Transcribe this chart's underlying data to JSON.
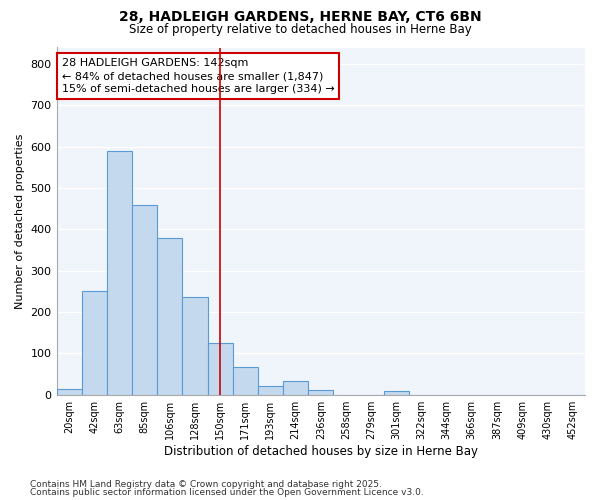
{
  "title1": "28, HADLEIGH GARDENS, HERNE BAY, CT6 6BN",
  "title2": "Size of property relative to detached houses in Herne Bay",
  "xlabel": "Distribution of detached houses by size in Herne Bay",
  "ylabel": "Number of detached properties",
  "categories": [
    "20sqm",
    "42sqm",
    "63sqm",
    "85sqm",
    "106sqm",
    "128sqm",
    "150sqm",
    "171sqm",
    "193sqm",
    "214sqm",
    "236sqm",
    "258sqm",
    "279sqm",
    "301sqm",
    "322sqm",
    "344sqm",
    "366sqm",
    "387sqm",
    "409sqm",
    "430sqm",
    "452sqm"
  ],
  "values": [
    15,
    250,
    590,
    458,
    380,
    237,
    125,
    67,
    22,
    33,
    12,
    0,
    0,
    9,
    0,
    0,
    0,
    0,
    0,
    0,
    0
  ],
  "bar_color": "#c5d9ee",
  "bar_edge_color": "#5b9bd5",
  "vline_x_index": 6,
  "vline_color": "#cc0000",
  "annotation_text_line1": "28 HADLEIGH GARDENS: 142sqm",
  "annotation_text_line2": "← 84% of detached houses are smaller (1,847)",
  "annotation_text_line3": "15% of semi-detached houses are larger (334) →",
  "annotation_box_color": "#ffffff",
  "annotation_edge_color": "#cc0000",
  "background_color": "#ffffff",
  "plot_background_color": "#f0f4fb",
  "grid_color": "#ffffff",
  "ylim": [
    0,
    840
  ],
  "yticks": [
    0,
    100,
    200,
    300,
    400,
    500,
    600,
    700,
    800
  ],
  "footer1": "Contains HM Land Registry data © Crown copyright and database right 2025.",
  "footer2": "Contains public sector information licensed under the Open Government Licence v3.0."
}
